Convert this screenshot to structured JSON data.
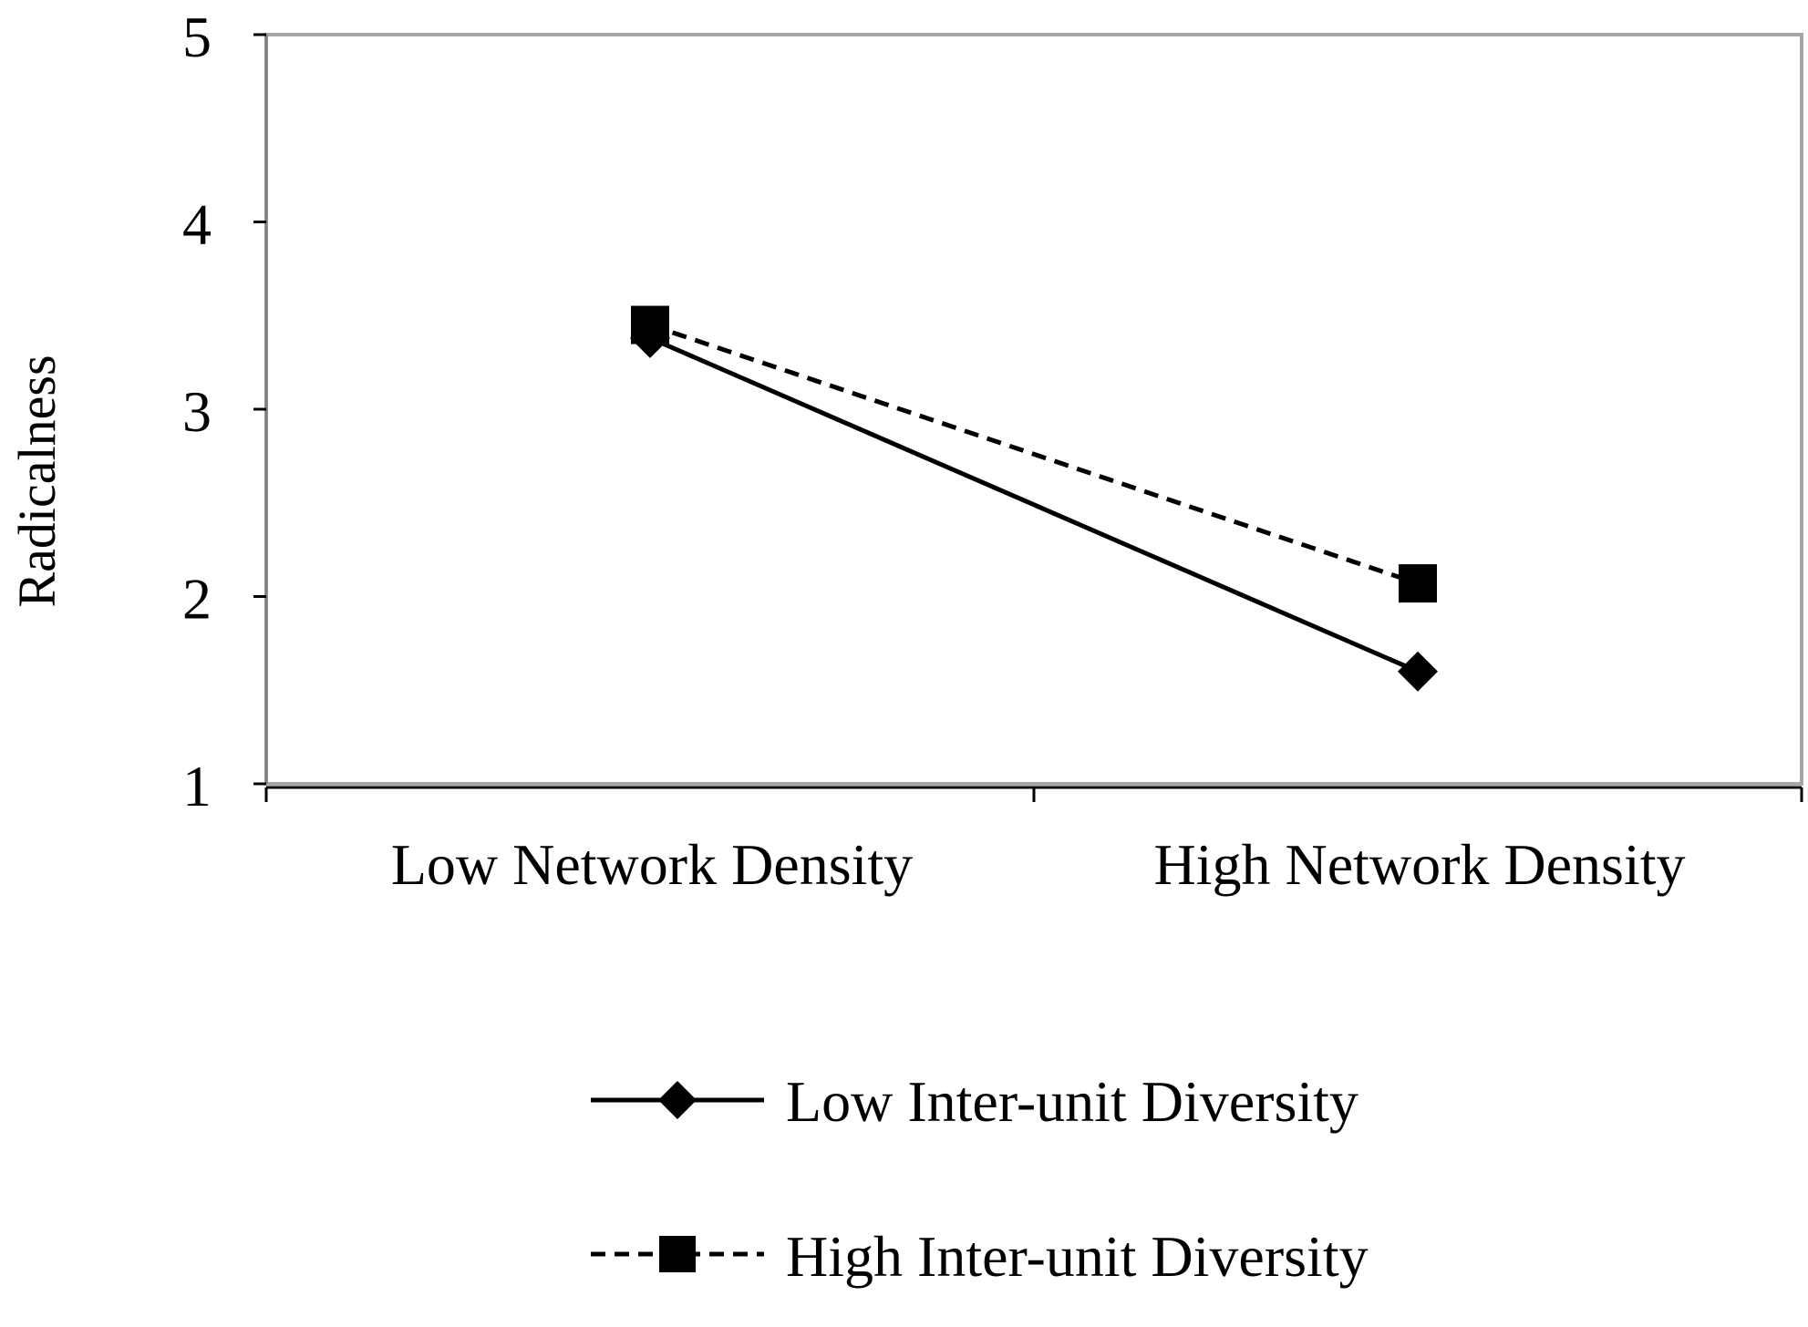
{
  "chart_data": {
    "type": "line",
    "categories": [
      "Low Network Density",
      "High Network Density"
    ],
    "series": [
      {
        "name": "Low Inter-unit Diversity",
        "values": [
          3.38,
          1.6
        ],
        "marker": "diamond",
        "line": "solid",
        "color": "#000000"
      },
      {
        "name": "High Inter-unit Diversity",
        "values": [
          3.45,
          2.07
        ],
        "marker": "square",
        "line": "dashed",
        "color": "#000000"
      }
    ],
    "title": "",
    "xlabel": "",
    "ylabel": "Radicalness",
    "ylim": [
      1,
      5
    ],
    "yticks": [
      "1",
      "2",
      "3",
      "4",
      "5"
    ],
    "grid": false,
    "legend_position": "bottom",
    "plot_border_color": "#a6a6a6"
  }
}
